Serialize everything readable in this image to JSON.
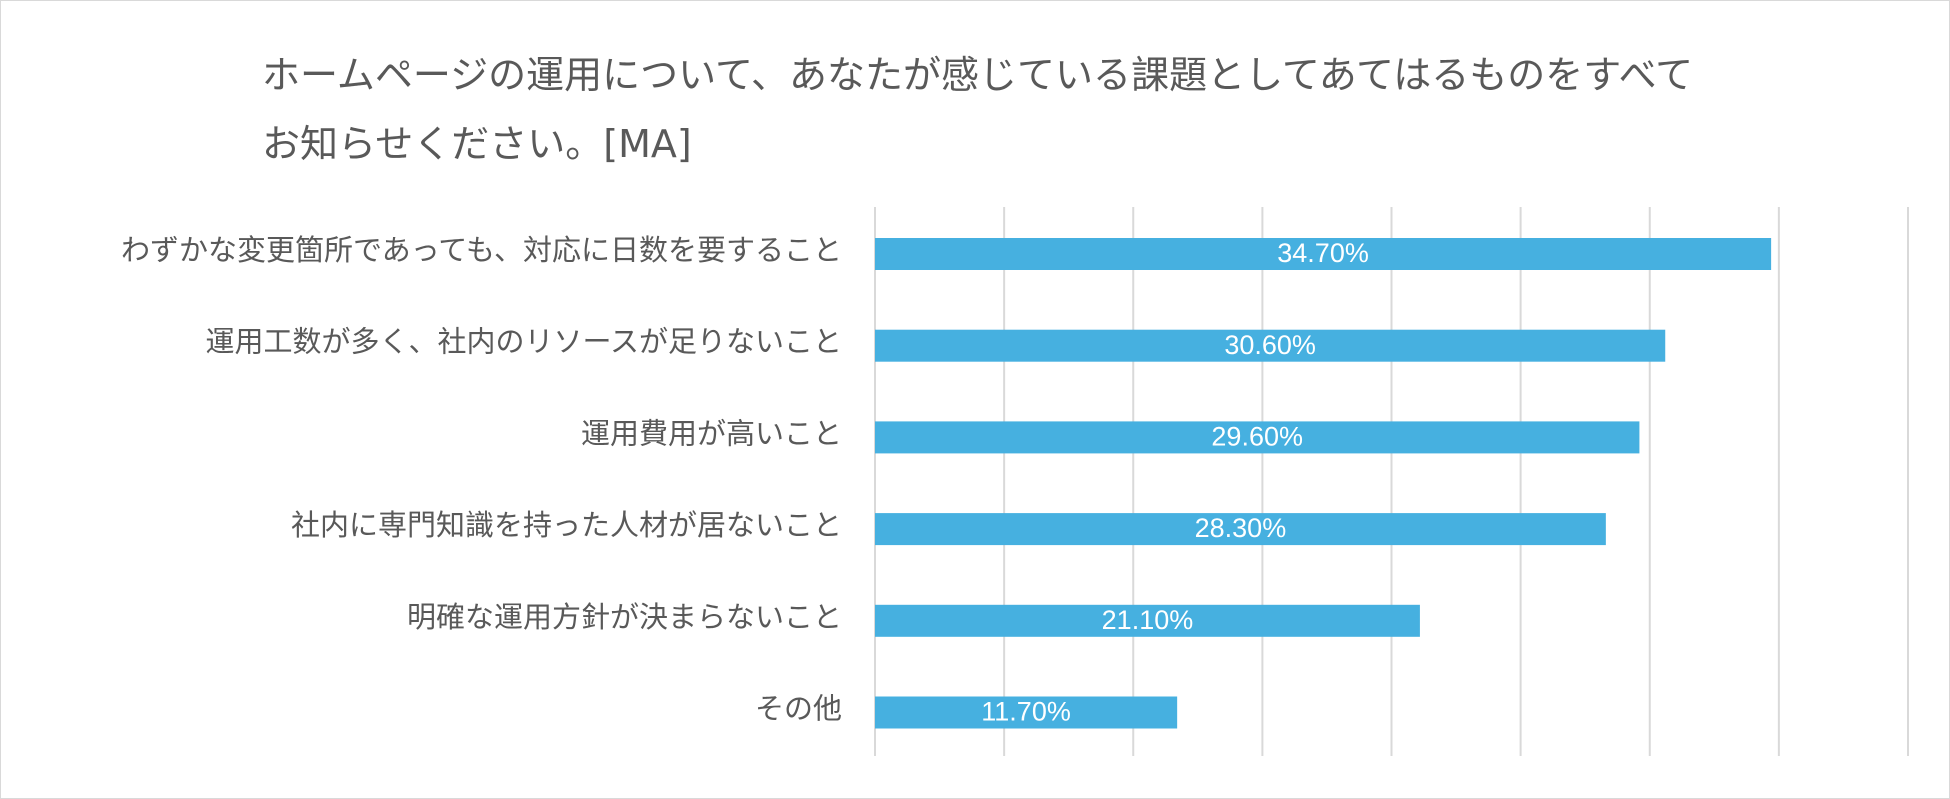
{
  "chart_data": {
    "type": "bar",
    "orientation": "horizontal",
    "title_lines": [
      "ホームページの運用について、あなたが感じている課題としてあてはるものをすべて",
      "お知らせください。[MA]"
    ],
    "categories": [
      "わずかな変更箇所であっても、対応に日数を要すること",
      "運用工数が多く、社内のリソースが足りないこと",
      "運用費用が高いこと",
      "社内に専門知識を持った人材が居ないこと",
      "明確な運用方針が決まらないこと",
      "その他"
    ],
    "values": [
      34.7,
      30.6,
      29.6,
      28.3,
      21.1,
      11.7
    ],
    "value_labels": [
      "34.70%",
      "30.60%",
      "29.60%",
      "28.30%",
      "21.10%",
      "11.70%"
    ],
    "xlim": [
      0,
      40
    ],
    "x_grid_step": 5,
    "grid": true,
    "legend": "none",
    "bar_color": "#46b0e0",
    "label_color": "#ffffff",
    "text_color": "#595959",
    "grid_color": "#d9d9d9"
  }
}
